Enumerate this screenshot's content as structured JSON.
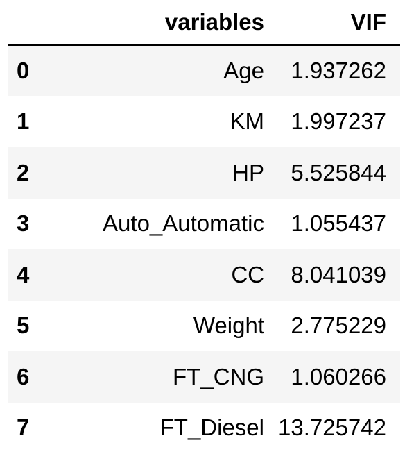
{
  "table": {
    "columns": [
      "",
      "variables",
      "VIF"
    ],
    "rows": [
      {
        "index": "0",
        "variable": "Age",
        "vif": "1.937262"
      },
      {
        "index": "1",
        "variable": "KM",
        "vif": "1.997237"
      },
      {
        "index": "2",
        "variable": "HP",
        "vif": "5.525844"
      },
      {
        "index": "3",
        "variable": "Auto_Automatic",
        "vif": "1.055437"
      },
      {
        "index": "4",
        "variable": "CC",
        "vif": "8.041039"
      },
      {
        "index": "5",
        "variable": "Weight",
        "vif": "2.775229"
      },
      {
        "index": "6",
        "variable": "FT_CNG",
        "vif": "1.060266"
      },
      {
        "index": "7",
        "variable": "FT_Diesel",
        "vif": "13.725742"
      }
    ]
  },
  "colors": {
    "stripe": "#f5f5f5",
    "background": "#ffffff",
    "text": "#000000"
  }
}
